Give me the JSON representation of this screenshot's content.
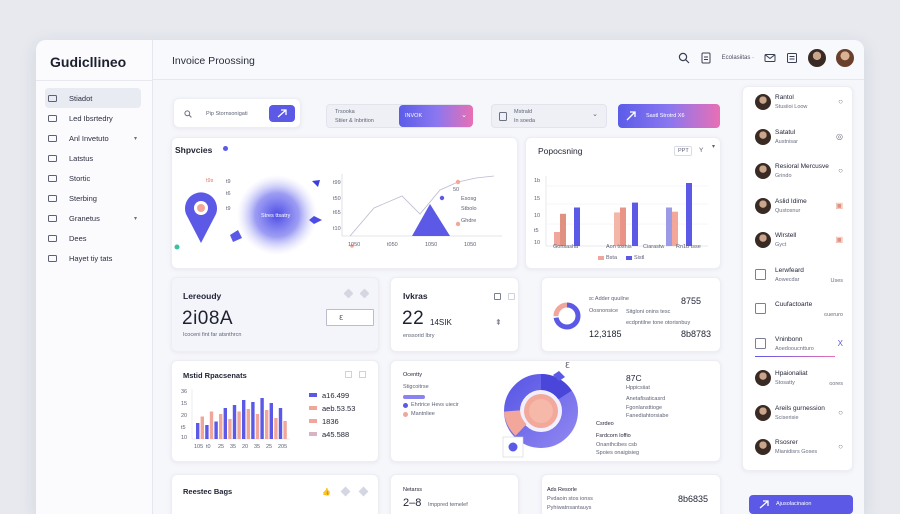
{
  "app": {
    "brand": "Gudicllineo",
    "page_title": "Invoice Proossing"
  },
  "topbar": {
    "label": "Ecolasiitas ·"
  },
  "sidebar": {
    "items": [
      {
        "label": "Stiadot",
        "active": true
      },
      {
        "label": "Led Ibsrtedry"
      },
      {
        "label": "Anl Invetuto",
        "caret": "▾"
      },
      {
        "label": "Latstus"
      },
      {
        "label": "Stortic"
      },
      {
        "label": "Sterbing"
      },
      {
        "label": "Granetus",
        "caret": "▾"
      },
      {
        "label": "Dees"
      },
      {
        "label": "Hayet tiy tats"
      }
    ]
  },
  "filters": {
    "search_placeholder": "Pip Stornsonigati",
    "f1_line1": "Trsooka",
    "f1_line2": "Stiier & Inbrition",
    "f1_value": "INVOK",
    "f2_line1": "Mstrald",
    "f2_line2": "In soeda",
    "action": "Sastl Strotrd X6"
  },
  "map_card": {
    "title": "Shpvcies",
    "bubble": "Stres ttsatry",
    "labels": [
      "t9s",
      "t9",
      "t6",
      "t9"
    ],
    "x_ticks": [
      "1050",
      "t050",
      "1050",
      "1050"
    ],
    "axis_labels": [
      "t99",
      "t50",
      "t65",
      "t10"
    ],
    "legend": [
      "50",
      "Esosg",
      "Stbolo",
      "Ghdre"
    ]
  },
  "proc_card": {
    "title": "Popocsning",
    "toggle": "PPT",
    "caret": "Y",
    "y_ticks": [
      "1b",
      "15",
      "10",
      "t5",
      "10"
    ],
    "x_labels": [
      "Gonsasha",
      "Aon tosnis",
      "Ciarastw",
      "Rn1b tsse"
    ],
    "legend": [
      "Bsta",
      "Sistl"
    ],
    "chart_bars": [
      {
        "h": 0.2,
        "c": "#f0a69b"
      },
      {
        "h": 0.46,
        "c": "#e0917f"
      },
      {
        "h": 0.55,
        "c": "#5b59e6"
      },
      {
        "h": 0.48,
        "c": "#f2b7a8"
      },
      {
        "h": 0.55,
        "c": "#e99486"
      },
      {
        "h": 0.62,
        "c": "#5b59e6"
      },
      {
        "h": 0.55,
        "c": "#9b9ae6"
      },
      {
        "h": 0.49,
        "c": "#f3a79a"
      },
      {
        "h": 0.9,
        "c": "#5b59e6"
      }
    ]
  },
  "kpi1": {
    "title": "Lereoudy",
    "value": "2i08A",
    "sub": "Icoceni fint far atsnthrcn"
  },
  "kpi2": {
    "title": "Ivkras",
    "value": "22",
    "value2": "14SIK",
    "sub": "enssorid Ibry"
  },
  "kpi3": {
    "line1": "ɪc Adder quuilne",
    "line2": "Oosnonsice",
    "value": "12,3185",
    "sub": "ecdpntilne tone otorisnbuy",
    "right1": "8755",
    "right2": "Sitgloni onins tesc",
    "right3": "8b8783",
    "progress": 0.72
  },
  "bar_card": {
    "title": "Mstid Rpacsenats",
    "legend": [
      {
        "label": "a16.499",
        "color": "#5b59e6"
      },
      {
        "label": "aeb.53.53",
        "color": "#f0a69b"
      },
      {
        "label": "1836",
        "color": "#f0a69b"
      },
      {
        "label": "a45.588",
        "color": "#d9b2c4"
      }
    ],
    "y_ticks": [
      "36",
      "15",
      "20",
      "t5",
      "10"
    ],
    "x_ticks": [
      "105",
      "t0",
      "25",
      "35",
      "20",
      "35",
      "25",
      "205"
    ],
    "bar_values": [
      0.32,
      0.45,
      0.28,
      0.55,
      0.35,
      0.5,
      0.62,
      0.4,
      0.68,
      0.55,
      0.78,
      0.6,
      0.74,
      0.5,
      0.82,
      0.58,
      0.72,
      0.42,
      0.62,
      0.36
    ]
  },
  "donut_card": {
    "title": "Ocentty",
    "sub1": "Stigcoitrse",
    "legend": [
      "Ehrtrice Hevs uiecir",
      "Mantnliee"
    ],
    "right_title": "87C",
    "right1": "Hppicsiiat",
    "right2": "Anetafisaticasrd",
    "right3": "Fgonlansttioge",
    "right4": "Fanediahtorsiabe",
    "bottom1": "Csrdeo",
    "bottom2": "Fsrdcorn loffio",
    "bottom3": "Onanthcibes csb",
    "bottom4": "Spoies onaigisieg"
  },
  "bottom1": {
    "title": "Reestec Bags"
  },
  "bottom2": {
    "title": "Netarss",
    "value": "2–8",
    "sub": "Imppred temelef"
  },
  "bottom3": {
    "line1": "Ads Resorle",
    "line2": "Pvdaoin stos ionss",
    "line3": "Pyhiwatnsantauys",
    "right": "8b6835"
  },
  "right_panel": {
    "items": [
      {
        "name": "Rantol",
        "sub": "Stusiioi Loow",
        "ctrl": "○"
      },
      {
        "name": "Satatul",
        "sub": "Austnisar",
        "ctrl": "◎"
      },
      {
        "name": "Resioral Mercusve",
        "sub": "Grindo",
        "ctrl": "○"
      },
      {
        "name": "Aslid Idime",
        "sub": "Qustosnur",
        "ctrl": "▣"
      },
      {
        "name": "Wlrstell",
        "sub": "Gyct",
        "ctrl": "▣"
      },
      {
        "name": "Lerwfeard",
        "sub": "Aowecdar",
        "ctrl": "Uses"
      },
      {
        "name": "Cuufactoarte",
        "sub": "",
        "ctrl": "ɢueruro"
      },
      {
        "name": "Vninbonn",
        "sub": "Aoedooucntturo",
        "ctrl": "X"
      },
      {
        "name": "Hpaionaliat",
        "sub": "Stosatty",
        "ctrl": "ɢores"
      },
      {
        "name": "Areils gurnession",
        "sub": "Sciserisie",
        "ctrl": "○"
      },
      {
        "name": "Rsosrer",
        "sub": "Mianidisrs Goses",
        "ctrl": "○"
      }
    ],
    "button": "Ajusolacinaion"
  }
}
